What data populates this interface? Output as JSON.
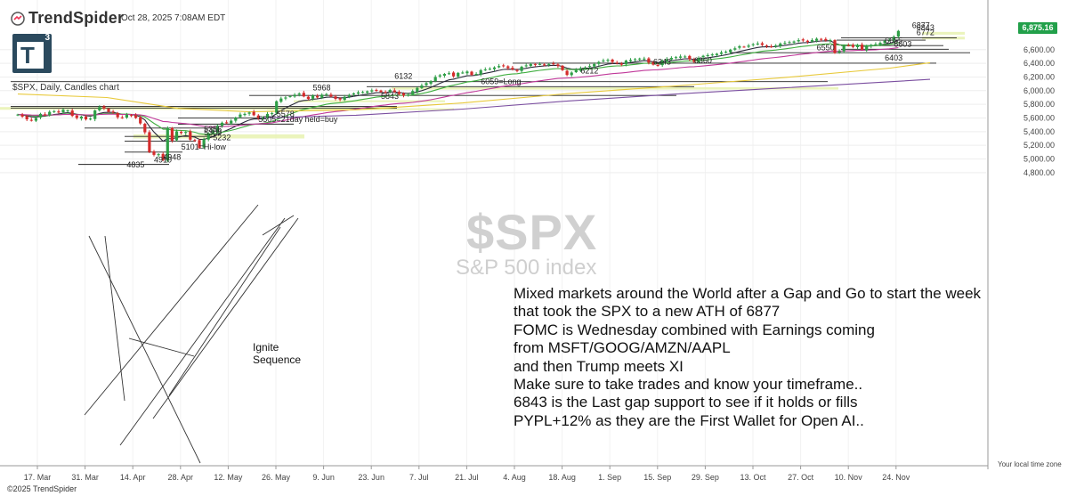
{
  "header": {
    "brand": "TrendSpider",
    "datetime": "Oct 28, 2025 7:08AM EDT",
    "logo_letter": "T",
    "logo_superscript": "3",
    "subtitle": "$SPX, Daily, Candles chart"
  },
  "watermark": {
    "ticker": "$SPX",
    "name": "S&P 500 index"
  },
  "commentary": [
    "Mixed markets around the World after a Gap and Go to start the week",
    "that took the SPX to a new ATH of 6877",
    "FOMC is Wednesday combined with Earnings coming",
    "from MSFT/GOOG/AMZN/AAPL",
    "and then Trump meets XI",
    "Make sure to take trades and know your timeframe..",
    "6843 is the Last gap support to see if it holds or fills",
    "PYPL+12% as they are the First Wallet for Open AI.."
  ],
  "footer": {
    "copyright": "©2025 TrendSpider",
    "timezone": "Your local time zone"
  },
  "last_price": "6,875.16",
  "ignite_label": [
    "Ignite",
    "Sequence"
  ],
  "colors": {
    "up": "#2e9e46",
    "down": "#d42b2b",
    "ema_fast": "#2a2a3a",
    "ema_mid": "#3fae3f",
    "ema_slow": "#c0399a",
    "sma_long": "#e8c93a",
    "sma_longest": "#7b4fa0",
    "zone": "#e8f2b0",
    "level": "#222222",
    "price_badge": "#22a04a"
  },
  "chart_data": {
    "type": "candlestick",
    "title": "$SPX, Daily, Candles chart",
    "ylim": [
      4750,
      6900
    ],
    "y_ticks": [
      "4,800.00",
      "5,000.00",
      "5,200.00",
      "5,400.00",
      "5,600.00",
      "5,800.00",
      "6,000.00",
      "6,200.00",
      "6,400.00",
      "6,600.00"
    ],
    "y_tick_values": [
      4800,
      5000,
      5200,
      5400,
      5600,
      5800,
      6000,
      6200,
      6400,
      6600
    ],
    "x_ticks": [
      "17. Mar",
      "31. Mar",
      "14. Apr",
      "28. Apr",
      "12. May",
      "26. May",
      "9. Jun",
      "23. Jun",
      "7. Jul",
      "21. Jul",
      "4. Aug",
      "18. Aug",
      "1. Sep",
      "15. Sep",
      "29. Sep",
      "13. Oct",
      "27. Oct",
      "10. Nov",
      "24. Nov"
    ],
    "closes": [
      5650,
      5620,
      5580,
      5560,
      5600,
      5660,
      5640,
      5690,
      5700,
      5680,
      5720,
      5710,
      5630,
      5600,
      5620,
      5580,
      5590,
      5710,
      5760,
      5740,
      5690,
      5680,
      5610,
      5600,
      5650,
      5640,
      5600,
      5520,
      5390,
      5100,
      5060,
      5070,
      4983,
      5456,
      5268,
      5405,
      5380,
      5396,
      5282,
      5275,
      5158,
      5288,
      5375,
      5405,
      5485,
      5530,
      5528,
      5560,
      5604,
      5650,
      5660,
      5680,
      5640,
      5595,
      5610,
      5660,
      5670,
      5845,
      5885,
      5900,
      5920,
      5940,
      5958,
      5915,
      5878,
      5930,
      5900,
      5940,
      5950,
      5915,
      5880,
      5870,
      5910,
      5935,
      5960,
      5975,
      5980,
      5990,
      6005,
      6010,
      5980,
      5975,
      6010,
      5980,
      5950,
      5930,
      5940,
      5995,
      6040,
      6075,
      6110,
      6140,
      6200,
      6225,
      6245,
      6255,
      6210,
      6260,
      6265,
      6280,
      6230,
      6245,
      6300,
      6310,
      6320,
      6340,
      6360,
      6360,
      6330,
      6310,
      6290,
      6350,
      6370,
      6390,
      6380,
      6390,
      6380,
      6390,
      6388,
      6360,
      6300,
      6230,
      6265,
      6300,
      6330,
      6340,
      6360,
      6390,
      6420,
      6440,
      6450,
      6420,
      6400,
      6380,
      6440,
      6450,
      6460,
      6470,
      6470,
      6410,
      6380,
      6370,
      6440,
      6460,
      6480,
      6490,
      6500,
      6500,
      6460,
      6420,
      6480,
      6510,
      6520,
      6530,
      6540,
      6560,
      6570,
      6600,
      6620,
      6650,
      6640,
      6660,
      6680,
      6690,
      6670,
      6650,
      6640,
      6660,
      6690,
      6700,
      6710,
      6720,
      6740,
      6735,
      6715,
      6740,
      6760,
      6750,
      6735,
      6740,
      6550,
      6580,
      6660,
      6660,
      6640,
      6670,
      6600,
      6650,
      6670,
      6680,
      6700,
      6730,
      6740,
      6790,
      6875
    ],
    "moving_averages": [
      {
        "name": "EMA fast",
        "color": "#2a2a3a"
      },
      {
        "name": "EMA mid",
        "color": "#3fae3f"
      },
      {
        "name": "EMA slow",
        "color": "#c0399a"
      },
      {
        "name": "SMA long",
        "color": "#e8c93a"
      },
      {
        "name": "SMA longest",
        "color": "#7b4fa0"
      }
    ],
    "level_labels": [
      {
        "text": "6877",
        "price": 6877,
        "x_day": 197
      },
      {
        "text": "6843",
        "price": 6843,
        "x_day": 198
      },
      {
        "text": "6772",
        "price": 6772,
        "x_day": 198
      },
      {
        "text": "6655",
        "price": 6655,
        "x_day": 191
      },
      {
        "text": "6603",
        "price": 6603,
        "x_day": 193
      },
      {
        "text": "6550",
        "price": 6550,
        "x_day": 176
      },
      {
        "text": "6403",
        "price": 6403,
        "x_day": 191
      },
      {
        "text": "6343",
        "price": 6343,
        "x_day": 140
      },
      {
        "text": "6360",
        "price": 6360,
        "x_day": 149
      },
      {
        "text": "6212",
        "price": 6212,
        "x_day": 124
      },
      {
        "text": "6132",
        "price": 6132,
        "x_day": 83
      },
      {
        "text": "6059=Long",
        "price": 6059,
        "x_day": 102
      },
      {
        "text": "5968",
        "price": 5968,
        "x_day": 65
      },
      {
        "text": "5843",
        "price": 5843,
        "x_day": 80
      },
      {
        "text": "5578",
        "price": 5578,
        "x_day": 57
      },
      {
        "text": "5505=21day held=buy",
        "price": 5505,
        "x_day": 53
      },
      {
        "text": "5356",
        "price": 5356,
        "x_day": 41
      },
      {
        "text": "5309",
        "price": 5309,
        "x_day": 41
      },
      {
        "text": "5232",
        "price": 5232,
        "x_day": 43
      },
      {
        "text": "5101=Hi-low",
        "price": 5101,
        "x_day": 36
      },
      {
        "text": "4948",
        "price": 4948,
        "x_day": 32
      },
      {
        "text": "4910",
        "price": 4910,
        "x_day": 30
      },
      {
        "text": "4835",
        "price": 4835,
        "x_day": 24
      }
    ]
  }
}
